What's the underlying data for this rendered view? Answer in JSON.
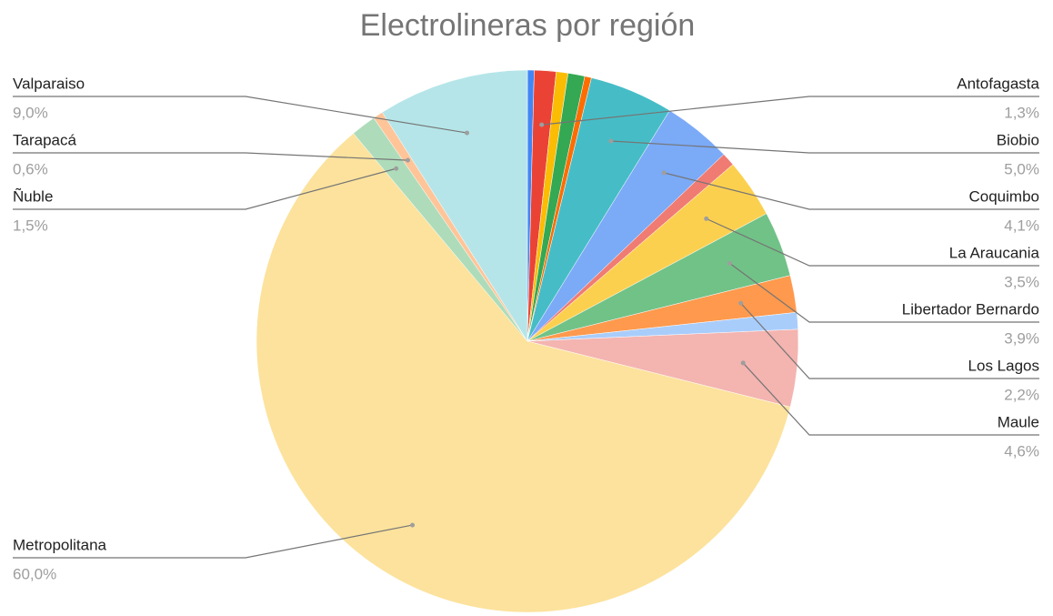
{
  "chart_data": {
    "type": "pie",
    "title": "Electrolineras por región",
    "categories": [
      null,
      "Antofagasta",
      null,
      null,
      null,
      "Biobio",
      "Coquimbo",
      null,
      "La Araucania",
      "Libertador Bernardo",
      "Los Lagos",
      null,
      "Maule",
      "Metropolitana",
      "Ñuble",
      "Tarapacá",
      "Valparaiso"
    ],
    "values": [
      0.4,
      1.3,
      0.7,
      1.0,
      0.4,
      5.0,
      4.1,
      0.8,
      3.5,
      3.9,
      2.2,
      1.0,
      4.6,
      60.0,
      1.5,
      0.6,
      9.0
    ],
    "value_labels": [
      null,
      "1,3%",
      null,
      null,
      null,
      "5,0%",
      "4,1%",
      null,
      "3,5%",
      "3,9%",
      "2,2%",
      null,
      "4,6%",
      "60,0%",
      "1,5%",
      "0,6%",
      "9,0%"
    ],
    "colors": [
      "#4285f4",
      "#ea4335",
      "#fbbc04",
      "#34a853",
      "#ff6d01",
      "#46bdc6",
      "#7baaf7",
      "#f07b72",
      "#fcd04f",
      "#71c287",
      "#ff994d",
      "#a9cdfb",
      "#f4b4b0",
      "#fce29c",
      "#aedcba",
      "#ffc599",
      "#b5e5e8"
    ]
  }
}
